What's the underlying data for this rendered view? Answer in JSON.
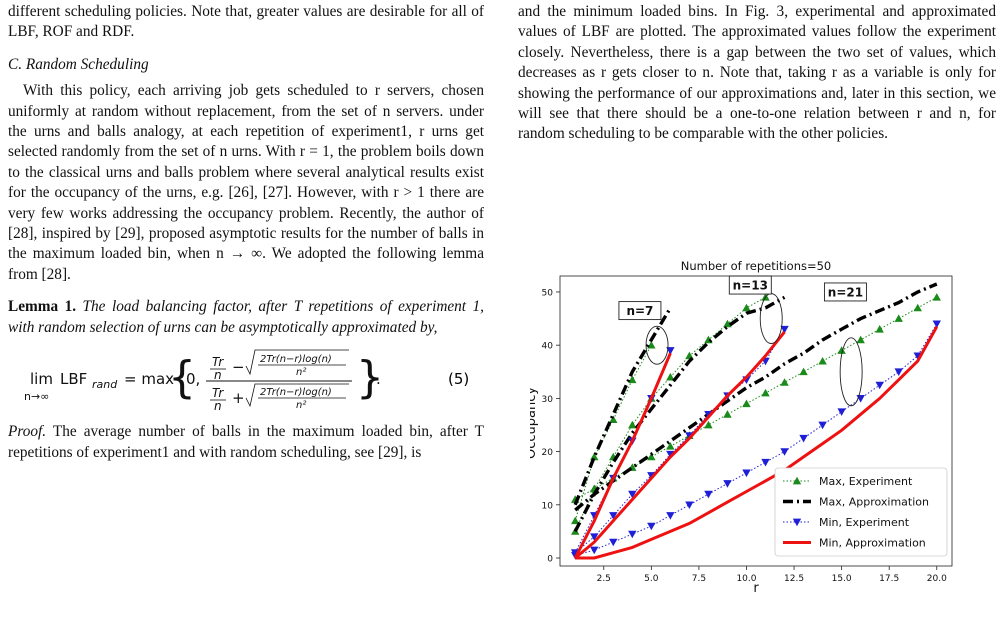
{
  "left": {
    "p1": "different scheduling policies. Note that, greater values are desirable for all of LBF, ROF and RDF.",
    "section": "C. Random Scheduling",
    "p2": "With this policy, each arriving job gets scheduled to r servers, chosen uniformly at random without replacement, from the set of n servers. under the urns and balls analogy, at each repetition of experiment1, r urns get selected randomly from the set of n urns. With r = 1, the problem boils down to the classical urns and balls problem where several analytical results exist for the occupancy of the urns, e.g. [26], [27]. However, with r > 1 there are very few works addressing the occupancy problem. Recently, the author of [28], inspired by [29], proposed asymptotic results for the number of balls in the maximum loaded bin, when n → ∞. We adopted the following lemma from [28].",
    "lemma_label": "Lemma 1.",
    "lemma_text": "The load balancing factor, after T repetitions of experiment 1, with random selection of urns can be asymptotically approximated by,",
    "eq_number": "(5)",
    "proof_label": "Proof.",
    "proof_text": "The average number of balls in the maximum loaded bin, after T repetitions of experiment1 and with random scheduling, see [29], is"
  },
  "right": {
    "p1": "and the minimum loaded bins. In Fig. 3, experimental and approximated values of LBF are plotted. The approximated values follow the experiment closely. Nevertheless, there is a gap between the two set of values, which decreases as r gets closer to n. Note that, taking r as a variable is only for showing the performance of our approximations and, later in this section, we will see that there should be a one-to-one relation between r and n, for random scheduling to be comparable with the other policies."
  },
  "chart_data": {
    "type": "line",
    "title": "Number of repetitions=50",
    "xlabel": "r",
    "ylabel": "Occupancy",
    "xlim": [
      0.2,
      20.8
    ],
    "ylim": [
      -1.5,
      53
    ],
    "xticks": [
      "2.5",
      "5.0",
      "7.5",
      "10.0",
      "12.5",
      "15.0",
      "17.5",
      "20.0"
    ],
    "yticks": [
      "0",
      "10",
      "20",
      "30",
      "40",
      "50"
    ],
    "legend_position": "lower-right",
    "annotations": [
      "n=7",
      "n=13",
      "n=21"
    ],
    "series": [
      {
        "name": "Max, Experiment",
        "group": "n=7",
        "color": "#1a8a1a",
        "x": [
          1,
          2,
          3,
          4,
          5
        ],
        "y": [
          7,
          19,
          26,
          33.5,
          40
        ]
      },
      {
        "name": "Max, Experiment",
        "group": "n=13",
        "color": "#1a8a1a",
        "x": [
          1,
          2,
          3,
          4,
          5,
          6,
          7,
          8,
          9,
          10,
          11
        ],
        "y": [
          5,
          13,
          19,
          25,
          30,
          34,
          38,
          41,
          44,
          47,
          49
        ]
      },
      {
        "name": "Max, Experiment",
        "group": "n=21",
        "color": "#1a8a1a",
        "x": [
          1,
          2,
          3,
          4,
          5,
          6,
          7,
          8,
          9,
          10,
          11,
          12,
          13,
          14,
          15,
          16,
          17,
          18,
          19,
          20
        ],
        "y": [
          11,
          13,
          15,
          17,
          19,
          21,
          23,
          25,
          27,
          29,
          31,
          33,
          35,
          37,
          39,
          41,
          43,
          45,
          47,
          49
        ]
      },
      {
        "name": "Max, Approximation",
        "group": "n=7",
        "color": "#000000",
        "x": [
          1,
          2,
          3,
          4,
          5,
          6
        ],
        "y": [
          10,
          19,
          27,
          35,
          41,
          47
        ]
      },
      {
        "name": "Max, Approximation",
        "group": "n=13",
        "color": "#000000",
        "x": [
          1,
          2,
          3,
          4,
          5,
          6,
          7,
          8,
          9,
          10,
          11,
          12
        ],
        "y": [
          5,
          12,
          18,
          23.5,
          28,
          32.5,
          37,
          40.5,
          43.5,
          46,
          47,
          49
        ]
      },
      {
        "name": "Max, Approximation",
        "group": "n=21",
        "color": "#000000",
        "x": [
          1,
          2,
          3,
          4,
          5,
          6,
          7,
          8,
          9,
          10,
          11,
          12,
          13,
          14,
          15,
          16,
          17,
          18,
          19,
          20
        ],
        "y": [
          9,
          12,
          14.5,
          17,
          19.5,
          22,
          24.5,
          27,
          29.5,
          32,
          34,
          36.5,
          38.5,
          41,
          43,
          45,
          46.5,
          48,
          50,
          51.5
        ]
      },
      {
        "name": "Min, Experiment",
        "group": "n=7",
        "color": "#1f1fd6",
        "x": [
          1,
          2,
          3,
          4,
          5,
          6
        ],
        "y": [
          1,
          8,
          15,
          22,
          30,
          39
        ]
      },
      {
        "name": "Min, Experiment",
        "group": "n=13",
        "color": "#1f1fd6",
        "x": [
          1,
          2,
          3,
          4,
          5,
          6,
          7,
          8,
          9,
          10,
          11,
          12
        ],
        "y": [
          1,
          4,
          8,
          12,
          15.5,
          19.5,
          23,
          27,
          30.5,
          33.5,
          37,
          43
        ]
      },
      {
        "name": "Min, Experiment",
        "group": "n=21",
        "color": "#1f1fd6",
        "x": [
          1,
          2,
          3,
          4,
          5,
          6,
          7,
          8,
          9,
          10,
          11,
          12,
          13,
          14,
          15,
          16,
          17,
          18,
          19,
          20
        ],
        "y": [
          0.5,
          1.5,
          3,
          4.5,
          6,
          8,
          10,
          12,
          14,
          16,
          18,
          20,
          22.5,
          25,
          27.5,
          30,
          32.5,
          35,
          38,
          44
        ]
      },
      {
        "name": "Min, Approximation",
        "group": "n=7",
        "color": "#ee1111",
        "x": [
          1,
          2,
          3,
          4,
          5,
          6
        ],
        "y": [
          0,
          7,
          15,
          22,
          30,
          38.5
        ]
      },
      {
        "name": "Min, Approximation",
        "group": "n=13",
        "color": "#ee1111",
        "x": [
          1,
          2,
          3,
          4,
          5,
          6,
          7,
          8,
          9,
          10,
          11,
          12
        ],
        "y": [
          0,
          3,
          7,
          11,
          15,
          19,
          22.5,
          26.5,
          30.5,
          34,
          38,
          42.5
        ]
      },
      {
        "name": "Min, Approximation",
        "group": "n=21",
        "color": "#ee1111",
        "x": [
          1,
          2,
          3,
          4,
          5,
          6,
          7,
          8,
          9,
          10,
          11,
          12,
          13,
          14,
          15,
          16,
          17,
          18,
          19,
          20
        ],
        "y": [
          0,
          0,
          1,
          2,
          3.5,
          5,
          6.5,
          8.5,
          10.5,
          12.5,
          14.5,
          16.5,
          19,
          21.5,
          24,
          27,
          30,
          33.5,
          37,
          43.5
        ]
      }
    ]
  }
}
